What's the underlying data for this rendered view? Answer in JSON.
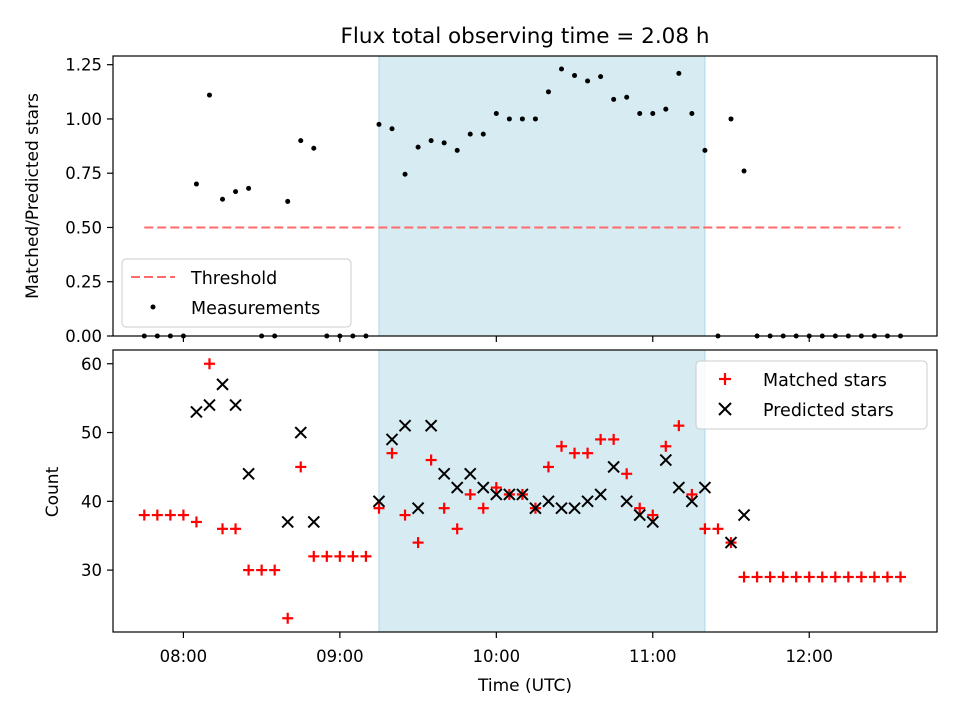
{
  "title": "Flux total observing time = 2.08 h",
  "chart_data": [
    {
      "type": "scatter",
      "panel": "top",
      "ylabel": "Matched/Predicted stars",
      "ylim": [
        0,
        1.29
      ],
      "yticks": [
        0,
        0.25,
        0.5,
        0.75,
        1.0,
        1.25
      ],
      "ytick_labels": [
        "0.00",
        "0.25",
        "0.50",
        "0.75",
        "1.00",
        "1.25"
      ],
      "xlim": [
        "07:33",
        "12:49"
      ],
      "shaded_interval": [
        "09:15",
        "11:20"
      ],
      "shaded_color": "#add8e6",
      "threshold": {
        "name": "Threshold",
        "value": 0.5,
        "x_range": [
          "07:45",
          "12:35"
        ],
        "color": "#ff6b6b"
      },
      "series": [
        {
          "name": "Measurements",
          "color": "#000000",
          "points": [
            [
              "07:45",
              0.0
            ],
            [
              "07:50",
              0.0
            ],
            [
              "07:55",
              0.0
            ],
            [
              "08:00",
              0.0
            ],
            [
              "08:05",
              0.7
            ],
            [
              "08:10",
              1.11
            ],
            [
              "08:15",
              0.63
            ],
            [
              "08:20",
              0.665
            ],
            [
              "08:25",
              0.68
            ],
            [
              "08:30",
              0.0
            ],
            [
              "08:35",
              0.0
            ],
            [
              "08:40",
              0.62
            ],
            [
              "08:45",
              0.9
            ],
            [
              "08:50",
              0.865
            ],
            [
              "08:55",
              0.0
            ],
            [
              "09:00",
              0.0
            ],
            [
              "09:05",
              0.0
            ],
            [
              "09:10",
              0.0
            ],
            [
              "09:15",
              0.975
            ],
            [
              "09:20",
              0.955
            ],
            [
              "09:25",
              0.745
            ],
            [
              "09:30",
              0.87
            ],
            [
              "09:35",
              0.9
            ],
            [
              "09:40",
              0.89
            ],
            [
              "09:45",
              0.855
            ],
            [
              "09:50",
              0.93
            ],
            [
              "09:55",
              0.93
            ],
            [
              "10:00",
              1.025
            ],
            [
              "10:05",
              1.0
            ],
            [
              "10:10",
              1.0
            ],
            [
              "10:15",
              1.0
            ],
            [
              "10:20",
              1.125
            ],
            [
              "10:25",
              1.23
            ],
            [
              "10:30",
              1.2
            ],
            [
              "10:35",
              1.175
            ],
            [
              "10:40",
              1.195
            ],
            [
              "10:45",
              1.09
            ],
            [
              "10:50",
              1.1
            ],
            [
              "10:55",
              1.025
            ],
            [
              "11:00",
              1.025
            ],
            [
              "11:05",
              1.045
            ],
            [
              "11:10",
              1.21
            ],
            [
              "11:15",
              1.025
            ],
            [
              "11:20",
              0.855
            ],
            [
              "11:25",
              0.0
            ],
            [
              "11:30",
              1.0
            ],
            [
              "11:35",
              0.76
            ],
            [
              "11:40",
              0.0
            ],
            [
              "11:45",
              0.0
            ],
            [
              "11:50",
              0.0
            ],
            [
              "11:55",
              0.0
            ],
            [
              "12:00",
              0.0
            ],
            [
              "12:05",
              0.0
            ],
            [
              "12:10",
              0.0
            ],
            [
              "12:15",
              0.0
            ],
            [
              "12:20",
              0.0
            ],
            [
              "12:25",
              0.0
            ],
            [
              "12:30",
              0.0
            ],
            [
              "12:35",
              0.0
            ]
          ]
        }
      ],
      "legend": {
        "placement": "lower-left",
        "entries": [
          "Threshold",
          "Measurements"
        ]
      }
    },
    {
      "type": "scatter",
      "panel": "bottom",
      "ylabel": "Count",
      "xlabel": "Time (UTC)",
      "ylim": [
        21,
        62
      ],
      "yticks": [
        30,
        40,
        50,
        60
      ],
      "ytick_labels": [
        "30",
        "40",
        "50",
        "60"
      ],
      "xlim": [
        "07:33",
        "12:49"
      ],
      "xticks": [
        "08:00",
        "09:00",
        "10:00",
        "11:00",
        "12:00"
      ],
      "shaded_interval": [
        "09:15",
        "11:20"
      ],
      "shaded_color": "#add8e6",
      "series": [
        {
          "name": "Matched stars",
          "marker": "plus",
          "color": "#ff0000",
          "points": [
            [
              "07:45",
              38
            ],
            [
              "07:50",
              38
            ],
            [
              "07:55",
              38
            ],
            [
              "08:00",
              38
            ],
            [
              "08:05",
              37
            ],
            [
              "08:10",
              60
            ],
            [
              "08:15",
              36
            ],
            [
              "08:20",
              36
            ],
            [
              "08:25",
              30
            ],
            [
              "08:30",
              30
            ],
            [
              "08:35",
              30
            ],
            [
              "08:40",
              23
            ],
            [
              "08:45",
              45
            ],
            [
              "08:50",
              32
            ],
            [
              "08:55",
              32
            ],
            [
              "09:00",
              32
            ],
            [
              "09:05",
              32
            ],
            [
              "09:10",
              32
            ],
            [
              "09:15",
              39
            ],
            [
              "09:20",
              47
            ],
            [
              "09:25",
              38
            ],
            [
              "09:30",
              34
            ],
            [
              "09:35",
              46
            ],
            [
              "09:40",
              39
            ],
            [
              "09:45",
              36
            ],
            [
              "09:50",
              41
            ],
            [
              "09:55",
              39
            ],
            [
              "10:00",
              42
            ],
            [
              "10:05",
              41
            ],
            [
              "10:10",
              41
            ],
            [
              "10:15",
              39
            ],
            [
              "10:20",
              45
            ],
            [
              "10:25",
              48
            ],
            [
              "10:30",
              47
            ],
            [
              "10:35",
              47
            ],
            [
              "10:40",
              49
            ],
            [
              "10:45",
              49
            ],
            [
              "10:50",
              44
            ],
            [
              "10:55",
              39
            ],
            [
              "11:00",
              38
            ],
            [
              "11:05",
              48
            ],
            [
              "11:10",
              51
            ],
            [
              "11:15",
              41
            ],
            [
              "11:20",
              36
            ],
            [
              "11:25",
              36
            ],
            [
              "11:30",
              34
            ],
            [
              "11:35",
              29
            ],
            [
              "11:40",
              29
            ],
            [
              "11:45",
              29
            ],
            [
              "11:50",
              29
            ],
            [
              "11:55",
              29
            ],
            [
              "12:00",
              29
            ],
            [
              "12:05",
              29
            ],
            [
              "12:10",
              29
            ],
            [
              "12:15",
              29
            ],
            [
              "12:20",
              29
            ],
            [
              "12:25",
              29
            ],
            [
              "12:30",
              29
            ],
            [
              "12:35",
              29
            ]
          ]
        },
        {
          "name": "Predicted stars",
          "marker": "x",
          "color": "#000000",
          "points": [
            [
              "08:05",
              53
            ],
            [
              "08:10",
              54
            ],
            [
              "08:15",
              57
            ],
            [
              "08:20",
              54
            ],
            [
              "08:25",
              44
            ],
            [
              "08:40",
              37
            ],
            [
              "08:45",
              50
            ],
            [
              "08:50",
              37
            ],
            [
              "09:15",
              40
            ],
            [
              "09:20",
              49
            ],
            [
              "09:25",
              51
            ],
            [
              "09:30",
              39
            ],
            [
              "09:35",
              51
            ],
            [
              "09:40",
              44
            ],
            [
              "09:45",
              42
            ],
            [
              "09:50",
              44
            ],
            [
              "09:55",
              42
            ],
            [
              "10:00",
              41
            ],
            [
              "10:05",
              41
            ],
            [
              "10:10",
              41
            ],
            [
              "10:15",
              39
            ],
            [
              "10:20",
              40
            ],
            [
              "10:25",
              39
            ],
            [
              "10:30",
              39
            ],
            [
              "10:35",
              40
            ],
            [
              "10:40",
              41
            ],
            [
              "10:45",
              45
            ],
            [
              "10:50",
              40
            ],
            [
              "10:55",
              38
            ],
            [
              "11:00",
              37
            ],
            [
              "11:05",
              46
            ],
            [
              "11:10",
              42
            ],
            [
              "11:15",
              40
            ],
            [
              "11:20",
              42
            ],
            [
              "11:30",
              34
            ],
            [
              "11:35",
              38
            ]
          ]
        }
      ],
      "legend": {
        "placement": "top-right",
        "entries": [
          "Matched stars",
          "Predicted stars"
        ]
      }
    }
  ]
}
